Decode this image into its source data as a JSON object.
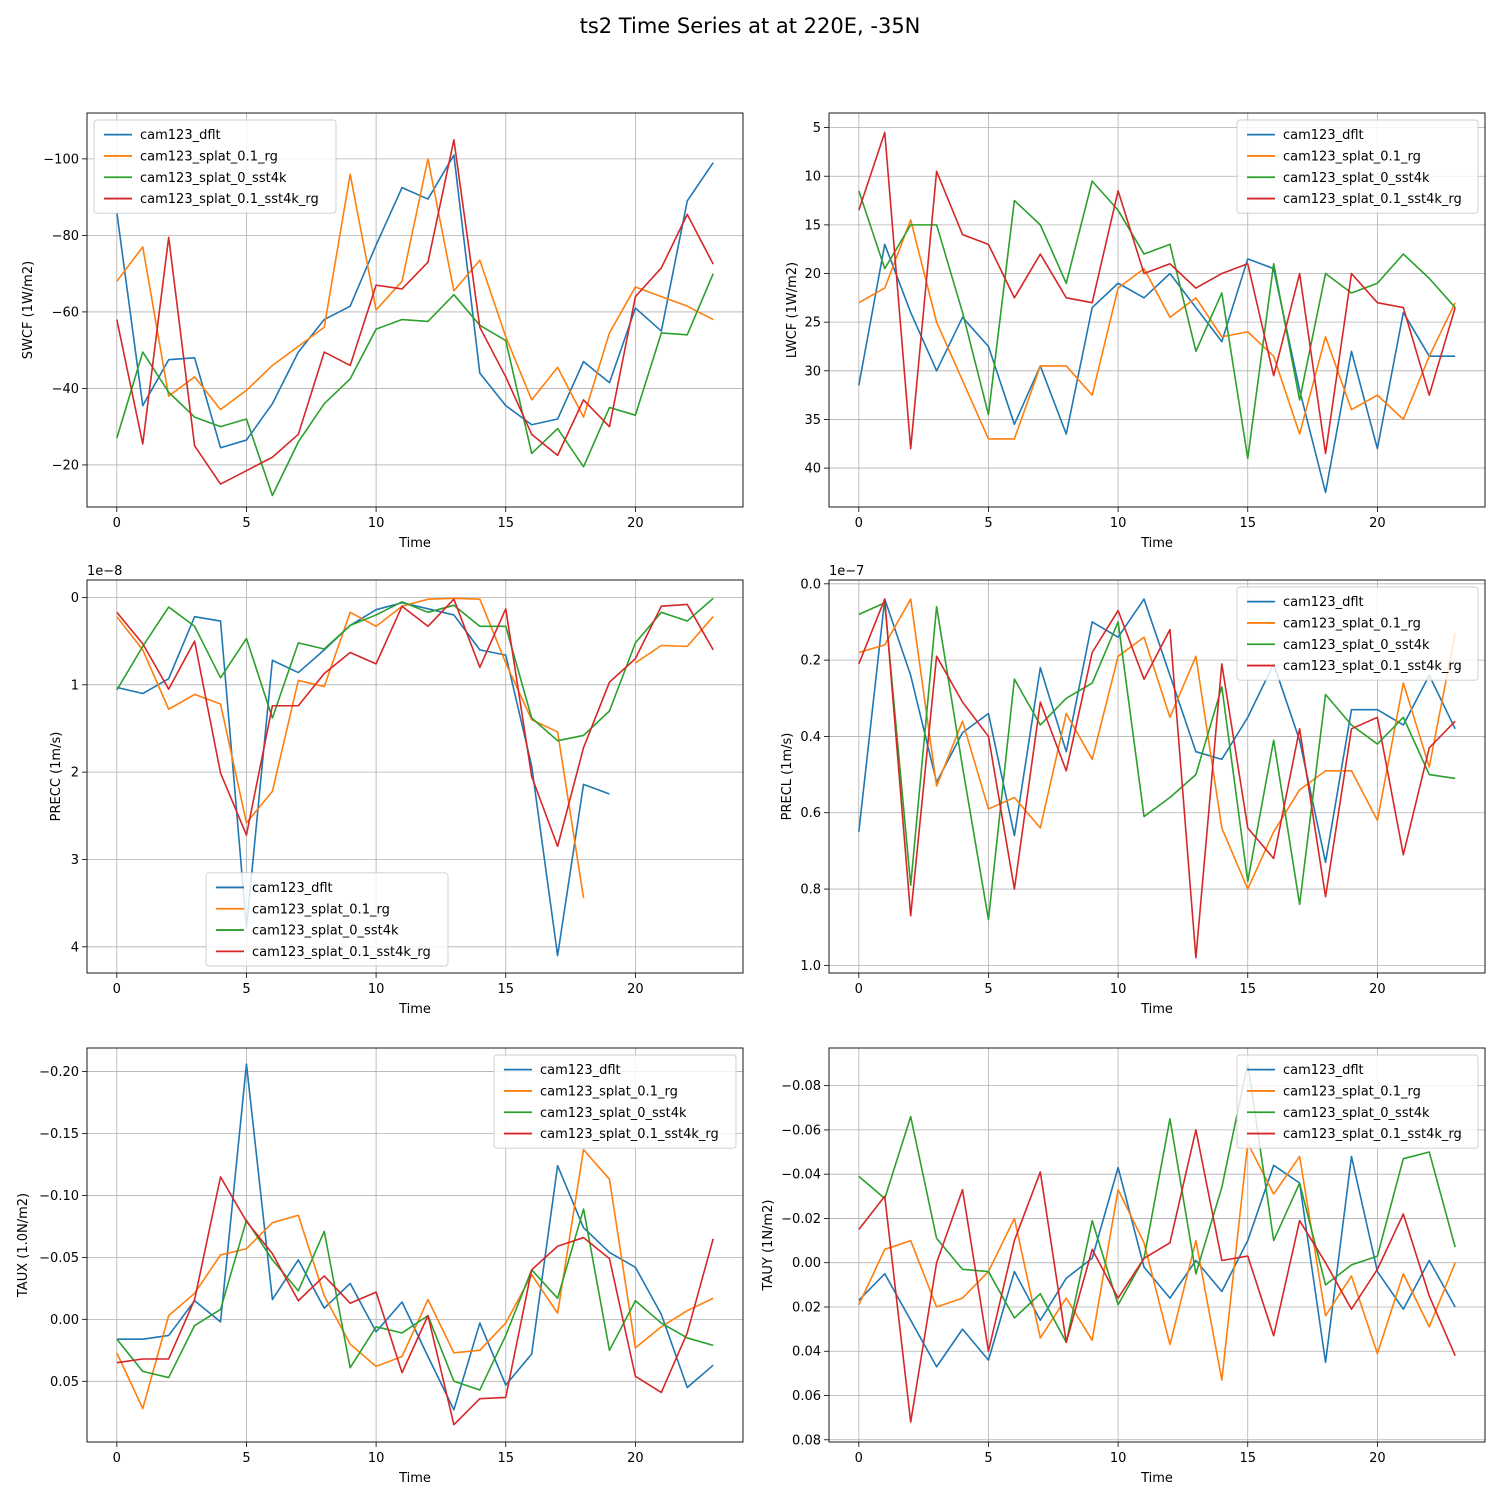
{
  "figure": {
    "title": "ts2 Time Series at at 220E, -35N"
  },
  "legend_names": [
    "cam123_dflt",
    "cam123_splat_0.1_rg",
    "cam123_splat_0_sst4k",
    "cam123_splat_0.1_sst4k_rg"
  ],
  "colors": {
    "dflt": "#1f77b4",
    "splat_rg": "#ff7f0e",
    "splat_sst4k": "#2ca02c",
    "splat_sst4k_rg": "#d62728"
  },
  "chart_data": [
    {
      "type": "line",
      "title": "",
      "xlabel": "Time",
      "ylabel": "SWCF (1W/m2)",
      "xlim": [
        -1.15,
        24.15
      ],
      "ylim": [
        -112,
        -9
      ],
      "inverted": true,
      "yticks": [
        -100,
        -80,
        -60,
        -40,
        -20
      ],
      "ytick_labels": [
        "−100",
        "−80",
        "−60",
        "−40",
        "−20"
      ],
      "xticks": [
        0,
        5,
        10,
        15,
        20
      ],
      "offset_text": "",
      "legend": "upper-left",
      "series": [
        {
          "name": "cam123_dflt",
          "values": [
            -86,
            -35.5,
            -47.5,
            -48,
            -24.5,
            -26.5,
            -36,
            -49.5,
            -58,
            -61.5,
            -77.5,
            -92.5,
            -89.5,
            -101,
            -44,
            -35.5,
            -30.5,
            -32,
            -47,
            -41.5,
            -61,
            -55,
            -89,
            -99
          ]
        },
        {
          "name": "cam123_splat_0.1_rg",
          "values": [
            -68,
            -77,
            -38,
            -43,
            -34.5,
            -39.5,
            -46,
            -51,
            -56,
            -96,
            -60.5,
            -68,
            -100,
            -65.5,
            -73.5,
            -53.5,
            -37,
            -45.5,
            -32.5,
            -54.5,
            -66.5,
            -64,
            -61.5,
            -58
          ]
        },
        {
          "name": "cam123_splat_0_sst4k",
          "values": [
            -27,
            -49.5,
            -39,
            -32.5,
            -30,
            -32,
            -12,
            -26,
            -36,
            -42.5,
            -55.5,
            -58,
            -57.5,
            -64.5,
            -56.5,
            -52.5,
            -23,
            -29.5,
            -19.5,
            -35,
            -33,
            -54.5,
            -54,
            -70
          ]
        },
        {
          "name": "cam123_splat_0.1_sst4k_rg",
          "values": [
            -58,
            -25.5,
            -79.5,
            -25,
            -15,
            -18.5,
            -22,
            -28,
            -49.5,
            -46,
            -67,
            -66,
            -73,
            -105,
            -56,
            -43,
            -28,
            -22.5,
            -37,
            -30,
            -64,
            -71.5,
            -85.5,
            -72.5
          ]
        }
      ]
    },
    {
      "type": "line",
      "title": "",
      "xlabel": "Time",
      "ylabel": "LWCF (1W/m2)",
      "xlim": [
        -1.15,
        24.15
      ],
      "ylim": [
        3.5,
        44
      ],
      "inverted": true,
      "yticks": [
        5,
        10,
        15,
        20,
        25,
        30,
        35,
        40
      ],
      "ytick_labels": [
        "5",
        "10",
        "15",
        "20",
        "25",
        "30",
        "35",
        "40"
      ],
      "xticks": [
        0,
        5,
        10,
        15,
        20
      ],
      "offset_text": "",
      "legend": "upper-right",
      "series": [
        {
          "name": "cam123_dflt",
          "values": [
            31.5,
            17,
            24,
            30,
            24.5,
            27.5,
            35.5,
            29.5,
            36.5,
            23.5,
            21,
            22.5,
            20,
            23.5,
            27,
            18.5,
            19.5,
            32,
            42.5,
            28,
            38,
            24,
            28.5,
            28.5
          ]
        },
        {
          "name": "cam123_splat_0.1_rg",
          "values": [
            23,
            21.5,
            14.5,
            25,
            31,
            37,
            37,
            29.5,
            29.5,
            32.5,
            21.5,
            19.5,
            24.5,
            22.5,
            26.5,
            26,
            28.5,
            36.5,
            26.5,
            34,
            32.5,
            35,
            28.5,
            23
          ]
        },
        {
          "name": "cam123_splat_0_sst4k",
          "values": [
            11.5,
            19.5,
            15,
            15,
            24,
            34.5,
            12.5,
            15,
            21,
            10.5,
            13.5,
            18,
            17,
            28,
            22,
            39,
            19,
            33,
            20,
            22,
            21,
            18,
            20.5,
            23.5
          ]
        },
        {
          "name": "cam123_splat_0.1_sst4k_rg",
          "values": [
            13.5,
            5.5,
            38,
            9.5,
            16,
            17,
            22.5,
            18,
            22.5,
            23,
            11.5,
            20,
            19,
            21.5,
            20,
            19,
            30.5,
            20,
            38.5,
            20,
            23,
            23.5,
            32.5,
            23.5
          ]
        }
      ]
    },
    {
      "type": "line",
      "title": "",
      "xlabel": "Time",
      "ylabel": "PRECC (1m/s)",
      "xlim": [
        -1.15,
        24.15
      ],
      "ylim": [
        -0.2,
        4.3
      ],
      "inverted": true,
      "yticks": [
        0,
        1,
        2,
        3,
        4
      ],
      "ytick_labels": [
        "0",
        "1",
        "2",
        "3",
        "4"
      ],
      "xticks": [
        0,
        5,
        10,
        15,
        20
      ],
      "offset_text": "1e−8",
      "legend": "lower-center",
      "series": [
        {
          "name": "cam123_dflt",
          "values": [
            1.03,
            1.1,
            0.93,
            0.22,
            0.27,
            3.78,
            0.72,
            0.86,
            0.6,
            0.32,
            0.14,
            0.06,
            0.13,
            0.2,
            0.6,
            0.66,
            1.93,
            4.1,
            2.14,
            2.25,
            null,
            null,
            null,
            null
          ]
        },
        {
          "name": "cam123_splat_0.1_rg",
          "values": [
            0.22,
            0.6,
            1.28,
            1.11,
            1.22,
            2.58,
            2.22,
            0.95,
            1.02,
            0.17,
            0.33,
            0.1,
            0.02,
            0.01,
            0.02,
            0.75,
            1.4,
            1.54,
            3.44,
            null,
            0.75,
            0.55,
            0.56,
            0.22
          ]
        },
        {
          "name": "cam123_splat_0_sst4k",
          "values": [
            1.06,
            0.56,
            0.11,
            0.33,
            0.92,
            0.47,
            1.38,
            0.52,
            0.59,
            0.32,
            0.2,
            0.05,
            0.17,
            0.09,
            0.33,
            0.33,
            1.38,
            1.64,
            1.58,
            1.3,
            0.52,
            0.17,
            0.27,
            0.01
          ]
        },
        {
          "name": "cam123_splat_0.1_sst4k_rg",
          "values": [
            0.17,
            0.53,
            1.05,
            0.5,
            2.01,
            2.72,
            1.24,
            1.24,
            0.87,
            0.63,
            0.76,
            0.1,
            0.33,
            0.02,
            0.8,
            0.13,
            2.05,
            2.85,
            1.72,
            0.97,
            0.7,
            0.1,
            0.08,
            0.6
          ]
        }
      ]
    },
    {
      "type": "line",
      "title": "",
      "xlabel": "Time",
      "ylabel": "PRECL (1m/s)",
      "xlim": [
        -1.15,
        24.15
      ],
      "ylim": [
        -0.01,
        1.02
      ],
      "inverted": true,
      "yticks": [
        0,
        0.2,
        0.4,
        0.6,
        0.8,
        1.0
      ],
      "ytick_labels": [
        "0.0",
        "0.2",
        "0.4",
        "0.6",
        "0.8",
        "1.0"
      ],
      "xticks": [
        0,
        5,
        10,
        15,
        20
      ],
      "offset_text": "1e−7",
      "legend": "upper-right",
      "series": [
        {
          "name": "cam123_dflt",
          "values": [
            0.65,
            0.04,
            0.24,
            0.52,
            0.39,
            0.34,
            0.66,
            0.22,
            0.44,
            0.1,
            0.14,
            0.04,
            0.24,
            0.44,
            0.46,
            0.35,
            0.21,
            0.41,
            0.73,
            0.33,
            0.33,
            0.37,
            0.24,
            0.38
          ]
        },
        {
          "name": "cam123_splat_0.1_rg",
          "values": [
            0.18,
            0.16,
            0.04,
            0.53,
            0.36,
            0.59,
            0.56,
            0.64,
            0.34,
            0.46,
            0.19,
            0.14,
            0.35,
            0.19,
            0.64,
            0.8,
            0.65,
            0.54,
            0.49,
            0.49,
            0.62,
            0.26,
            0.48,
            0.13
          ]
        },
        {
          "name": "cam123_splat_0_sst4k",
          "values": [
            0.08,
            0.05,
            0.79,
            0.06,
            0.48,
            0.88,
            0.25,
            0.37,
            0.3,
            0.26,
            0.1,
            0.61,
            0.56,
            0.5,
            0.27,
            0.78,
            0.41,
            0.84,
            0.29,
            0.37,
            0.42,
            0.35,
            0.5,
            0.51
          ]
        },
        {
          "name": "cam123_splat_0.1_sst4k_rg",
          "values": [
            0.21,
            0.04,
            0.87,
            0.19,
            0.31,
            0.4,
            0.8,
            0.31,
            0.49,
            0.18,
            0.07,
            0.25,
            0.12,
            0.98,
            0.21,
            0.64,
            0.72,
            0.38,
            0.82,
            0.38,
            0.35,
            0.71,
            0.43,
            0.36
          ]
        }
      ]
    },
    {
      "type": "line",
      "title": "",
      "xlabel": "Time",
      "ylabel": "TAUX (1.0N/m2)",
      "xlim": [
        -1.15,
        24.15
      ],
      "ylim": [
        -0.219,
        0.099
      ],
      "inverted": true,
      "yticks": [
        -0.2,
        -0.15,
        -0.1,
        -0.05,
        0,
        0.05
      ],
      "ytick_labels": [
        "−0.20",
        "−0.15",
        "−0.10",
        "−0.05",
        "0.00",
        "0.05"
      ],
      "xticks": [
        0,
        5,
        10,
        15,
        20
      ],
      "offset_text": "",
      "legend": "upper-right",
      "series": [
        {
          "name": "cam123_dflt",
          "values": [
            0.016,
            0.016,
            0.013,
            -0.015,
            0.002,
            -0.206,
            -0.016,
            -0.048,
            -0.009,
            -0.029,
            0.01,
            -0.014,
            0.03,
            0.073,
            0.003,
            0.053,
            0.028,
            -0.124,
            -0.074,
            -0.054,
            -0.042,
            -0.004,
            0.055,
            0.037
          ]
        },
        {
          "name": "cam123_splat_0.1_rg",
          "values": [
            0.027,
            0.072,
            -0.003,
            -0.021,
            -0.052,
            -0.057,
            -0.078,
            -0.084,
            -0.019,
            0.02,
            0.038,
            0.03,
            -0.016,
            0.027,
            0.025,
            0.003,
            -0.036,
            -0.005,
            -0.137,
            -0.113,
            0.023,
            0.006,
            -0.007,
            -0.017
          ]
        },
        {
          "name": "cam123_splat_0_sst4k",
          "values": [
            0.016,
            0.042,
            0.047,
            0.005,
            -0.008,
            -0.08,
            -0.048,
            -0.023,
            -0.071,
            0.039,
            0.006,
            0.011,
            -0.003,
            0.05,
            0.057,
            0.013,
            -0.04,
            -0.017,
            -0.089,
            0.025,
            -0.015,
            0.003,
            0.015,
            0.021
          ]
        },
        {
          "name": "cam123_splat_0.1_sst4k_rg",
          "values": [
            0.035,
            0.032,
            0.032,
            -0.016,
            -0.115,
            -0.079,
            -0.053,
            -0.015,
            -0.035,
            -0.013,
            -0.022,
            0.043,
            -0.003,
            0.085,
            0.064,
            0.063,
            -0.04,
            -0.059,
            -0.066,
            -0.049,
            0.046,
            0.059,
            0.011,
            -0.065
          ]
        }
      ]
    },
    {
      "type": "line",
      "title": "",
      "xlabel": "Time",
      "ylabel": "TAUY (1N/m2)",
      "xlim": [
        -1.15,
        24.15
      ],
      "ylim": [
        -0.097,
        0.081
      ],
      "inverted": true,
      "yticks": [
        -0.08,
        -0.06,
        -0.04,
        -0.02,
        0,
        0.02,
        0.04,
        0.06,
        0.08
      ],
      "ytick_labels": [
        "−0.08",
        "−0.06",
        "−0.04",
        "−0.02",
        "0.00",
        "0.02",
        "0.04",
        "0.06",
        "0.08"
      ],
      "xticks": [
        0,
        5,
        10,
        15,
        20
      ],
      "offset_text": "",
      "legend": "upper-right",
      "series": [
        {
          "name": "cam123_dflt",
          "values": [
            0.017,
            0.005,
            0.026,
            0.047,
            0.03,
            0.044,
            0.004,
            0.026,
            0.007,
            -0.002,
            -0.043,
            0.002,
            0.016,
            -0.001,
            0.013,
            -0.01,
            -0.044,
            -0.036,
            0.045,
            -0.048,
            0.004,
            0.021,
            -0.001,
            0.02
          ]
        },
        {
          "name": "cam123_splat_0.1_rg",
          "values": [
            0.019,
            -0.006,
            -0.01,
            0.02,
            0.016,
            0.004,
            -0.02,
            0.034,
            0.016,
            0.035,
            -0.033,
            -0.009,
            0.037,
            -0.01,
            0.053,
            -0.054,
            -0.031,
            -0.048,
            0.024,
            0.006,
            0.041,
            0.005,
            0.029,
            0.0
          ]
        },
        {
          "name": "cam123_splat_0_sst4k",
          "values": [
            -0.039,
            -0.029,
            -0.066,
            -0.011,
            0.003,
            0.004,
            0.025,
            0.014,
            0.036,
            -0.019,
            0.019,
            -0.002,
            -0.065,
            0.005,
            -0.034,
            -0.09,
            -0.01,
            -0.036,
            0.01,
            0.001,
            -0.003,
            -0.047,
            -0.05,
            -0.007
          ]
        },
        {
          "name": "cam123_splat_0.1_sst4k_rg",
          "values": [
            -0.015,
            -0.03,
            0.072,
            0.0,
            -0.033,
            0.04,
            -0.01,
            -0.041,
            0.036,
            -0.006,
            0.016,
            -0.002,
            -0.009,
            -0.06,
            -0.001,
            -0.003,
            0.033,
            -0.019,
            0.0,
            0.021,
            0.003,
            -0.022,
            0.015,
            0.042
          ]
        }
      ]
    }
  ]
}
